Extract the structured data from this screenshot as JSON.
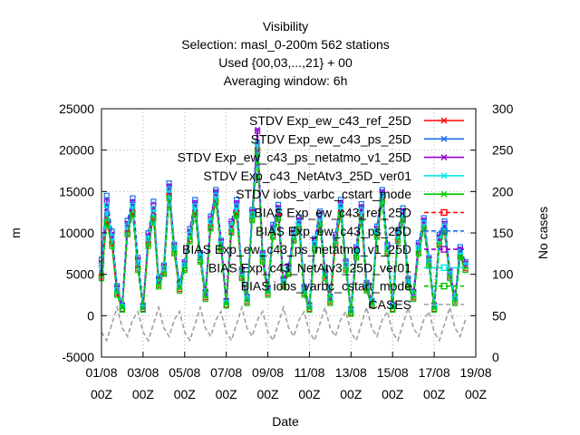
{
  "chart_data": {
    "type": "line",
    "title_lines": [
      "Visibility",
      "Selection: masl_0-200m    562 stations",
      "Used {00,03,...,21} + 00",
      "Averaging window:  6h"
    ],
    "xlabel": "Date",
    "ylabel": "m",
    "y2label": "No cases",
    "ylim": [
      -5000,
      25000
    ],
    "y2lim": [
      0,
      300
    ],
    "yticks": [
      "-5000",
      "0",
      "5000",
      "10000",
      "15000",
      "20000",
      "25000"
    ],
    "y2ticks": [
      "0",
      "50",
      "100",
      "150",
      "200",
      "250",
      "300"
    ],
    "xticks": [
      {
        "date": "01/08",
        "hour": "00Z"
      },
      {
        "date": "03/08",
        "hour": "00Z"
      },
      {
        "date": "05/08",
        "hour": "00Z"
      },
      {
        "date": "07/08",
        "hour": "00Z"
      },
      {
        "date": "09/08",
        "hour": "00Z"
      },
      {
        "date": "11/08",
        "hour": "00Z"
      },
      {
        "date": "13/08",
        "hour": "00Z"
      },
      {
        "date": "15/08",
        "hour": "00Z"
      },
      {
        "date": "17/08",
        "hour": "00Z"
      },
      {
        "date": "19/08",
        "hour": "00Z"
      }
    ],
    "x_start": "01/08 00Z",
    "x_end": "19/08 00Z",
    "grid": true,
    "legend_position": "top-right",
    "x": [
      "01/08 00Z",
      "01/08 06Z",
      "01/08 12Z",
      "01/08 18Z",
      "02/08 00Z",
      "02/08 06Z",
      "02/08 12Z",
      "02/08 18Z",
      "03/08 00Z",
      "03/08 06Z",
      "03/08 12Z",
      "03/08 18Z",
      "04/08 00Z",
      "04/08 06Z",
      "04/08 12Z",
      "04/08 18Z",
      "05/08 00Z",
      "05/08 06Z",
      "05/08 12Z",
      "05/08 18Z",
      "06/08 00Z",
      "06/08 06Z",
      "06/08 12Z",
      "06/08 18Z",
      "07/08 00Z",
      "07/08 06Z",
      "07/08 12Z",
      "07/08 18Z",
      "08/08 00Z",
      "08/08 06Z",
      "08/08 12Z",
      "08/08 18Z",
      "09/08 00Z",
      "09/08 06Z",
      "09/08 12Z",
      "09/08 18Z",
      "10/08 00Z",
      "10/08 06Z",
      "10/08 12Z",
      "10/08 18Z",
      "11/08 00Z",
      "11/08 06Z",
      "11/08 12Z",
      "11/08 18Z",
      "12/08 00Z",
      "12/08 06Z",
      "12/08 12Z",
      "12/08 18Z",
      "13/08 00Z",
      "13/08 06Z",
      "13/08 12Z",
      "13/08 18Z",
      "14/08 00Z",
      "14/08 06Z",
      "14/08 12Z",
      "14/08 18Z",
      "15/08 00Z",
      "15/08 06Z",
      "15/08 12Z",
      "15/08 18Z",
      "16/08 00Z",
      "16/08 06Z",
      "16/08 12Z",
      "16/08 18Z",
      "17/08 00Z",
      "17/08 06Z",
      "17/08 12Z",
      "17/08 18Z",
      "18/08 00Z",
      "18/08 06Z",
      "18/08 12Z"
    ],
    "series": [
      {
        "name": "STDV Exp_ew_c43_ref_25D",
        "axis": "y1",
        "color": "#ff0000",
        "marker": "x",
        "dash": false,
        "values": [
          5000,
          12000,
          9000,
          3000,
          1000,
          10500,
          13000,
          6000,
          1000,
          9000,
          12500,
          4000,
          5500,
          15000,
          8000,
          3500,
          6000,
          9500,
          13000,
          7000,
          2500,
          11000,
          14500,
          8500,
          1500,
          10500,
          13000,
          5000,
          2000,
          12000,
          20500,
          7000,
          3000,
          10000,
          12500,
          4000,
          5500,
          9500,
          11000,
          3000,
          1000,
          8500,
          11500,
          5000,
          2000,
          9000,
          13000,
          6000,
          500,
          7500,
          12500,
          3500,
          1500,
          10000,
          14500,
          8000,
          1000,
          9500,
          12000,
          4000,
          2500,
          8000,
          11000,
          6500,
          1000,
          9000,
          10500,
          5000,
          2000,
          7500,
          6000
        ]
      },
      {
        "name": "STDV Exp_ew_c43_ps_25D",
        "axis": "y1",
        "color": "#1a6ef0",
        "marker": "x",
        "dash": false,
        "values": [
          5500,
          13000,
          9500,
          3500,
          1200,
          11000,
          13500,
          6500,
          1100,
          9500,
          13000,
          4300,
          5800,
          15500,
          8300,
          3800,
          6300,
          10000,
          13500,
          7300,
          2700,
          11500,
          15000,
          8800,
          1700,
          11000,
          13500,
          5300,
          2200,
          12500,
          21000,
          7300,
          3200,
          10500,
          13000,
          4300,
          5800,
          10000,
          11500,
          3300,
          1200,
          9000,
          12000,
          5300,
          2200,
          9500,
          13500,
          6300,
          700,
          8000,
          13000,
          3800,
          1700,
          10500,
          15000,
          8300,
          1200,
          10000,
          12500,
          4300,
          2700,
          8500,
          11500,
          6800,
          1200,
          9500,
          11000,
          5300,
          2200,
          8000,
          6300
        ]
      },
      {
        "name": "STDV Exp_ew_c43_ps_netatmo_v1_25D",
        "axis": "y1",
        "color": "#9400d3",
        "marker": "x",
        "dash": false,
        "values": [
          5200,
          12500,
          9200,
          3200,
          1100,
          10800,
          13200,
          6200,
          1000,
          9200,
          12800,
          4100,
          5600,
          15200,
          8100,
          3600,
          6100,
          9700,
          13200,
          7100,
          2600,
          11200,
          14800,
          8600,
          1600,
          10700,
          13200,
          5100,
          2100,
          12200,
          22500,
          7100,
          3100,
          10200,
          12700,
          4100,
          5600,
          9700,
          11200,
          3100,
          1100,
          8700,
          11700,
          5100,
          2100,
          9200,
          13200,
          6100,
          600,
          7700,
          12700,
          3600,
          1600,
          10200,
          14700,
          8100,
          1100,
          9700,
          12200,
          4100,
          2600,
          8200,
          11200,
          6600,
          1100,
          9200,
          10700,
          5100,
          2100,
          7700,
          6100
        ]
      },
      {
        "name": "STDV Exp_c43_NetAtv3_25D_ver01",
        "axis": "y1",
        "color": "#00e8e8",
        "marker": "x",
        "dash": false,
        "values": [
          5100,
          12200,
          9100,
          3100,
          1000,
          10600,
          13100,
          6100,
          1000,
          9100,
          12600,
          4000,
          5500,
          15100,
          8000,
          3500,
          6000,
          9600,
          13100,
          7000,
          2500,
          11100,
          14600,
          8500,
          1500,
          10600,
          13100,
          5000,
          2000,
          12100,
          20600,
          7000,
          3000,
          10100,
          12600,
          4000,
          5500,
          9600,
          11100,
          3000,
          1000,
          8600,
          11600,
          5000,
          2000,
          9100,
          13100,
          6000,
          500,
          7600,
          12600,
          3500,
          1500,
          10100,
          14600,
          8000,
          1000,
          9600,
          12100,
          4000,
          2500,
          8100,
          11100,
          6500,
          1000,
          9100,
          10600,
          5000,
          2000,
          7600,
          6000
        ]
      },
      {
        "name": "STDV iobs_varbc_cstart_mode",
        "axis": "y1",
        "color": "#00c800",
        "marker": "x",
        "dash": false,
        "values": [
          4900,
          11800,
          8900,
          2900,
          900,
          10300,
          12800,
          5900,
          900,
          8900,
          12300,
          3900,
          5400,
          14800,
          7900,
          3400,
          5900,
          9400,
          12800,
          6900,
          2400,
          10900,
          14300,
          8400,
          1400,
          10400,
          12800,
          4900,
          1900,
          11900,
          20300,
          6900,
          2900,
          9900,
          12300,
          3900,
          5400,
          9400,
          10900,
          2900,
          900,
          8400,
          11400,
          4900,
          1900,
          8900,
          12800,
          5900,
          400,
          7400,
          12300,
          3400,
          1400,
          9900,
          14300,
          7900,
          900,
          9400,
          11900,
          3900,
          2400,
          7900,
          10900,
          6400,
          900,
          8900,
          10400,
          4900,
          1900,
          7400,
          5900
        ]
      },
      {
        "name": "BIAS Exp_ew_c43_ref_25D",
        "axis": "y1",
        "color": "#ff0000",
        "marker": "square",
        "dash": true,
        "values": [
          4700,
          11500,
          8700,
          2700,
          800,
          10000,
          12500,
          5700,
          800,
          8700,
          12000,
          3700,
          5200,
          14500,
          7700,
          3200,
          5700,
          9200,
          12500,
          6700,
          2200,
          10700,
          14000,
          8200,
          1300,
          10200,
          12500,
          4700,
          1700,
          11700,
          20000,
          6700,
          2700,
          9700,
          12000,
          3700,
          5200,
          9200,
          10700,
          2700,
          800,
          8200,
          11200,
          4700,
          1700,
          8700,
          12500,
          5700,
          300,
          7200,
          12000,
          3200,
          1300,
          9700,
          14000,
          7700,
          800,
          9200,
          11700,
          3700,
          2200,
          7700,
          10700,
          6200,
          800,
          8700,
          10200,
          4700,
          1700,
          7200,
          5700
        ]
      },
      {
        "name": "BIAS Exp_ew_c43_ps_25D",
        "axis": "y1",
        "color": "#1a6ef0",
        "marker": "square",
        "dash": true,
        "values": [
          6800,
          14500,
          10200,
          3600,
          1300,
          11500,
          14200,
          7000,
          1200,
          10000,
          13800,
          4500,
          6100,
          16000,
          8600,
          4000,
          6500,
          10500,
          14000,
          7600,
          2900,
          12000,
          15200,
          9100,
          1800,
          11400,
          14000,
          5600,
          2300,
          12800,
          19500,
          7600,
          3400,
          11000,
          13400,
          4500,
          6000,
          10400,
          11900,
          3500,
          1300,
          9300,
          12600,
          5500,
          2300,
          9800,
          14000,
          6600,
          800,
          8300,
          13500,
          4000,
          1800,
          10800,
          15200,
          8600,
          1300,
          10300,
          13000,
          4500,
          2900,
          8800,
          11800,
          7000,
          1300,
          9800,
          11400,
          5500,
          2300,
          8300,
          6500
        ]
      },
      {
        "name": "BIAS Exp_ew_c43_ps_netatmo_v1_25D",
        "axis": "y1",
        "color": "#9400d3",
        "marker": "square",
        "dash": true,
        "values": [
          6300,
          13800,
          9800,
          3300,
          1200,
          11100,
          13700,
          6700,
          1100,
          9600,
          13300,
          4300,
          5900,
          15600,
          8400,
          3800,
          6300,
          10100,
          13600,
          7400,
          2800,
          11700,
          14900,
          8900,
          1700,
          11100,
          13600,
          5400,
          2200,
          12500,
          22300,
          7400,
          3300,
          10600,
          13000,
          4300,
          5800,
          10000,
          11500,
          3300,
          1200,
          9000,
          12100,
          5300,
          2200,
          9500,
          13600,
          6400,
          700,
          8000,
          13100,
          3800,
          1700,
          10500,
          14900,
          8400,
          1200,
          10000,
          12600,
          4300,
          2800,
          8500,
          11500,
          6800,
          1200,
          9500,
          11100,
          5300,
          2200,
          8000,
          6300
        ]
      },
      {
        "name": "BIAS Exp_c43_NetAtv3_25D_ver01",
        "axis": "y1",
        "color": "#00e8e8",
        "marker": "square",
        "dash": true,
        "values": [
          6000,
          13300,
          9500,
          3100,
          1100,
          10800,
          13300,
          6400,
          1000,
          9300,
          12900,
          4100,
          5700,
          15200,
          8200,
          3600,
          6100,
          9800,
          13200,
          7200,
          2600,
          11400,
          14500,
          8700,
          1600,
          10800,
          13200,
          5200,
          2100,
          12200,
          20800,
          7200,
          3100,
          10300,
          12700,
          4100,
          5600,
          9700,
          11200,
          3100,
          1100,
          8700,
          11800,
          5100,
          2100,
          9200,
          13200,
          6200,
          600,
          7700,
          12700,
          3600,
          1600,
          10200,
          14500,
          8200,
          1100,
          9700,
          12300,
          4100,
          2600,
          8200,
          11200,
          6600,
          1100,
          9200,
          10800,
          5100,
          2100,
          7700,
          6100
        ]
      },
      {
        "name": "BIAS iobs_varbc_cstart_mode",
        "axis": "y1",
        "color": "#00c800",
        "marker": "square",
        "dash": true,
        "values": [
          4500,
          11200,
          8400,
          2500,
          700,
          9800,
          12200,
          5500,
          700,
          8400,
          11700,
          3500,
          5000,
          14200,
          7500,
          3000,
          5500,
          9000,
          12200,
          6500,
          2000,
          10500,
          13700,
          8000,
          1200,
          10000,
          12200,
          4500,
          1500,
          11500,
          19800,
          6500,
          2500,
          9500,
          11700,
          3500,
          5000,
          9000,
          10500,
          2500,
          700,
          8000,
          11000,
          4500,
          1500,
          8500,
          12200,
          5500,
          200,
          7000,
          11700,
          3000,
          1200,
          9500,
          13700,
          7500,
          700,
          9000,
          11500,
          3500,
          2000,
          7500,
          10500,
          6000,
          700,
          8500,
          10000,
          4500,
          1500,
          7000,
          5500
        ]
      },
      {
        "name": "CASES",
        "axis": "y2",
        "color": "#a0a0a0",
        "marker": "none",
        "dash": true,
        "values": [
          30,
          20,
          40,
          60,
          35,
          25,
          45,
          55,
          30,
          20,
          40,
          60,
          35,
          25,
          45,
          55,
          30,
          20,
          40,
          60,
          35,
          25,
          45,
          55,
          30,
          20,
          40,
          60,
          35,
          25,
          45,
          55,
          30,
          20,
          40,
          60,
          35,
          25,
          45,
          55,
          30,
          20,
          40,
          60,
          35,
          25,
          45,
          55,
          30,
          20,
          40,
          60,
          35,
          25,
          45,
          55,
          30,
          20,
          40,
          60,
          35,
          25,
          45,
          55,
          30,
          20,
          40,
          60,
          35,
          25,
          45
        ]
      }
    ]
  }
}
